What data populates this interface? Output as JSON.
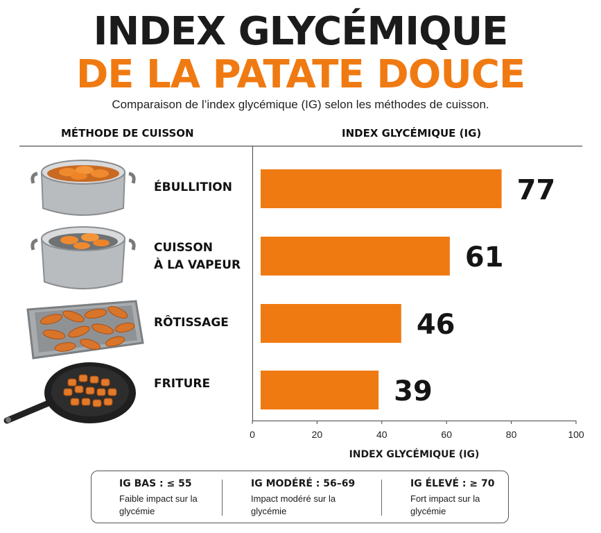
{
  "header": {
    "title_line1": "INDEX GLYCÉMIQUE",
    "title_line2": "DE LA PATATE DOUCE",
    "subtitle": "Comparaison de l’index glycémique (IG) selon les méthodes de cuisson."
  },
  "columns": {
    "left": "MÉTHODE DE CUISSON",
    "right": "INDEX GLYCÉMIQUE (IG)"
  },
  "methods": [
    {
      "label": "ÉBULLITION",
      "icon": "boiling-pot-icon"
    },
    {
      "label": "CUISSON\nÀ LA VAPEUR",
      "icon": "steamer-pot-icon"
    },
    {
      "label": "RÔTISSAGE",
      "icon": "roasting-tray-icon"
    },
    {
      "label": "FRITURE",
      "icon": "frying-pan-icon"
    }
  ],
  "chart_data": {
    "type": "bar",
    "orientation": "horizontal",
    "categories": [
      "ÉBULLITION",
      "CUISSON À LA VAPEUR",
      "RÔTISSAGE",
      "FRITURE"
    ],
    "values": [
      77,
      61,
      46,
      39
    ],
    "value_labels": [
      "77",
      "61",
      "46",
      "39"
    ],
    "xlabel": "INDEX GLYCÉMIQUE (IG)",
    "xlim": [
      0,
      100
    ],
    "xticks": [
      0,
      20,
      40,
      60,
      80,
      100
    ],
    "xtick_labels": [
      "0",
      "20",
      "40",
      "60",
      "80",
      "100"
    ],
    "bar_color": "#f07a12",
    "grid": false
  },
  "legend": [
    {
      "title": "IG BAS : ≤ 55",
      "desc": "Faible impact sur la glycémie"
    },
    {
      "title": "IG MODÉRÉ : 56–69",
      "desc": "Impact modéré sur la glycémie"
    },
    {
      "title": "IG ÉLEVÉ : ≥ 70",
      "desc": "Fort impact sur la glycémie"
    }
  ],
  "colors": {
    "accent": "#f07a12",
    "title": "#1b1b1b"
  }
}
